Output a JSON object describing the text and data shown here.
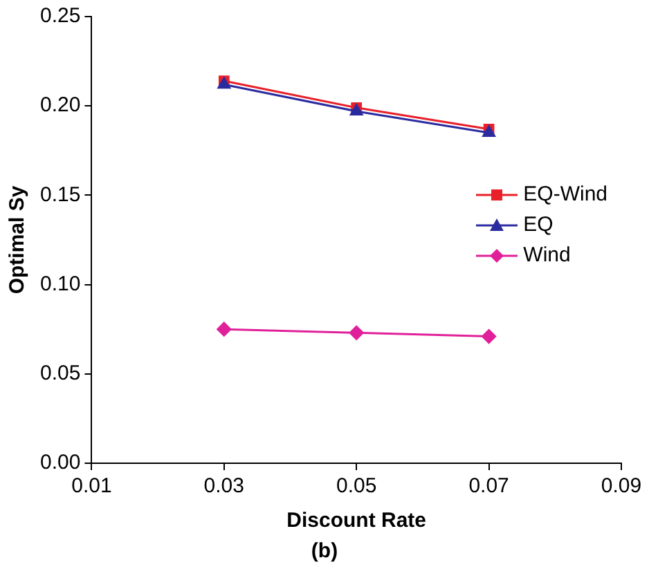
{
  "chart_data": {
    "type": "line",
    "xlabel": "Discount Rate",
    "ylabel": "Optimal Sy",
    "annotations": [
      "(b)"
    ],
    "x": [
      0.03,
      0.05,
      0.07
    ],
    "series": [
      {
        "name": "EQ-Wind",
        "color": "#e8202a",
        "marker": "square",
        "values": [
          0.214,
          0.199,
          0.187
        ]
      },
      {
        "name": "EQ",
        "color": "#2b2ba0",
        "marker": "triangle",
        "values": [
          0.212,
          0.197,
          0.185
        ]
      },
      {
        "name": "Wind",
        "color": "#e0209a",
        "marker": "diamond",
        "values": [
          0.075,
          0.073,
          0.071
        ]
      }
    ],
    "xlim": [
      0.01,
      0.09
    ],
    "xticks": [
      0.01,
      0.03,
      0.05,
      0.07,
      0.09
    ],
    "ylim": [
      0,
      0.25
    ],
    "yticks": [
      {
        "value": 0,
        "label": "0.00"
      },
      {
        "value": 0.05,
        "label": "0.05"
      },
      {
        "value": 0.1,
        "label": "0.10"
      },
      {
        "value": 0.15,
        "label": "0.15"
      },
      {
        "value": 0.2,
        "label": "0.20"
      },
      {
        "value": 0.25,
        "label": "0.25"
      }
    ],
    "grid": false,
    "legend": "right",
    "line_style": "solid"
  }
}
